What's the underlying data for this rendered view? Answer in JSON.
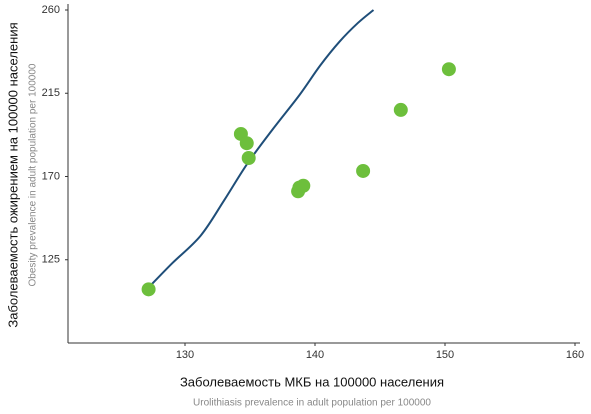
{
  "chart_data": {
    "type": "scatter",
    "x_label": "Заболеваемость МКБ на 100000 населения",
    "x_sublabel": "Urolithiasis prevalence in adult population per 100000",
    "y_label": "Заболеваемость ожирением на 100000 населения",
    "y_sublabel": "Obesity prevalence in adult population per 100000",
    "xlim": [
      121,
      160
    ],
    "xticks": [
      130,
      140,
      150,
      160
    ],
    "ylim": [
      80,
      260
    ],
    "yticks": [
      125,
      170,
      215,
      260
    ],
    "grid": false,
    "color": "#6dbf3c",
    "x": [
      127.2,
      134.3,
      134.75,
      134.9,
      138.7,
      138.8,
      139.1,
      143.7,
      146.6,
      150.3
    ],
    "y": [
      109,
      193,
      188,
      180,
      162,
      164,
      165,
      173,
      206,
      228
    ],
    "fit": {
      "color": "#1f4e79",
      "x": [
        127.2,
        129.0,
        131.2,
        133.0,
        134.8,
        136.8,
        138.8,
        140.4,
        141.9,
        143.3,
        144.5
      ],
      "y": [
        110,
        123,
        138,
        157,
        177,
        196,
        214,
        230,
        243,
        253,
        260
      ]
    }
  }
}
